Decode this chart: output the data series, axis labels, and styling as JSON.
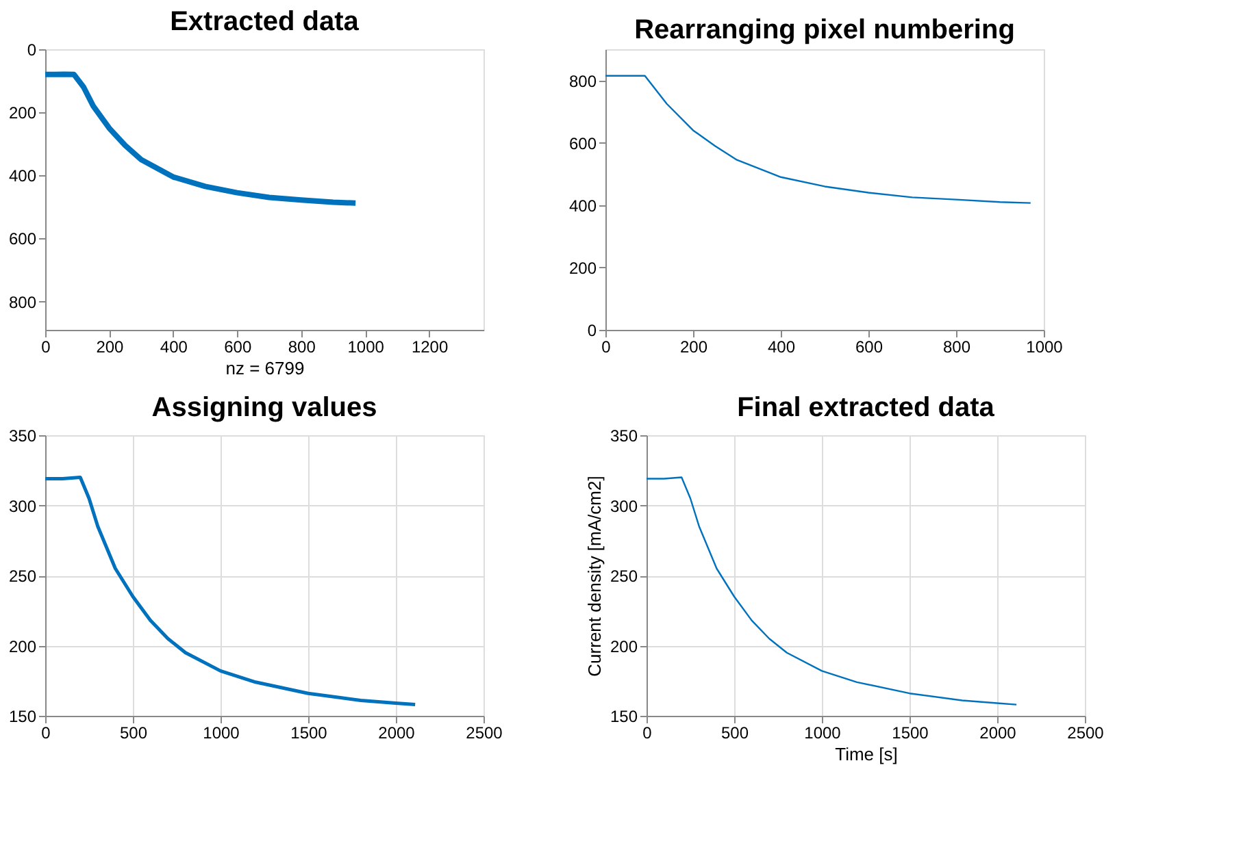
{
  "chart_data": [
    {
      "type": "line",
      "title": "Extracted data",
      "xlabel": "nz = 6799",
      "xlim": [
        0,
        1370
      ],
      "xticks": [
        0,
        200,
        400,
        600,
        800,
        1000,
        1200
      ],
      "ylim": [
        890,
        0
      ],
      "yticks": [
        0,
        200,
        400,
        600,
        800
      ],
      "grid": false,
      "series": [
        {
          "color": "#0072bd",
          "x": [
            0,
            30,
            60,
            90,
            120,
            150,
            200,
            250,
            300,
            400,
            500,
            600,
            700,
            800,
            900,
            970
          ],
          "values": [
            80,
            80,
            79,
            80,
            120,
            180,
            250,
            305,
            350,
            405,
            435,
            455,
            470,
            478,
            485,
            488
          ]
        }
      ]
    },
    {
      "type": "line",
      "title": "Rearranging pixel numbering",
      "xlim": [
        0,
        1000
      ],
      "xticks": [
        0,
        200,
        400,
        600,
        800,
        1000
      ],
      "ylim": [
        0,
        900
      ],
      "yticks": [
        0,
        200,
        400,
        600,
        800
      ],
      "grid": false,
      "series": [
        {
          "color": "#0072bd",
          "x": [
            0,
            30,
            60,
            90,
            140,
            200,
            250,
            300,
            400,
            500,
            600,
            700,
            800,
            900,
            970
          ],
          "values": [
            815,
            815,
            815,
            815,
            725,
            640,
            590,
            545,
            490,
            460,
            440,
            425,
            418,
            410,
            407
          ]
        }
      ]
    },
    {
      "type": "line",
      "title": "Assigning values",
      "xlim": [
        0,
        2500
      ],
      "xticks": [
        0,
        500,
        1000,
        1500,
        2000,
        2500
      ],
      "ylim": [
        150,
        350
      ],
      "yticks": [
        150,
        200,
        250,
        300,
        350
      ],
      "grid": true,
      "series": [
        {
          "color": "#0072bd",
          "x": [
            0,
            100,
            200,
            250,
            300,
            400,
            500,
            600,
            700,
            800,
            1000,
            1200,
            1500,
            1800,
            2000,
            2110
          ],
          "values": [
            319,
            319,
            320,
            305,
            285,
            255,
            235,
            218,
            205,
            195,
            182,
            174,
            166,
            161,
            159,
            158
          ]
        }
      ]
    },
    {
      "type": "line",
      "title": "Final extracted data",
      "xlabel": "Time [s]",
      "ylabel": "Current density [mA/cm2]",
      "xlim": [
        0,
        2500
      ],
      "xticks": [
        0,
        500,
        1000,
        1500,
        2000,
        2500
      ],
      "ylim": [
        150,
        350
      ],
      "yticks": [
        150,
        200,
        250,
        300,
        350
      ],
      "grid": true,
      "series": [
        {
          "color": "#0072bd",
          "x": [
            0,
            100,
            200,
            250,
            300,
            400,
            500,
            600,
            700,
            800,
            1000,
            1200,
            1500,
            1800,
            2000,
            2110
          ],
          "values": [
            319,
            319,
            320,
            305,
            285,
            255,
            235,
            218,
            205,
            195,
            182,
            174,
            166,
            161,
            159,
            158
          ]
        }
      ]
    }
  ]
}
